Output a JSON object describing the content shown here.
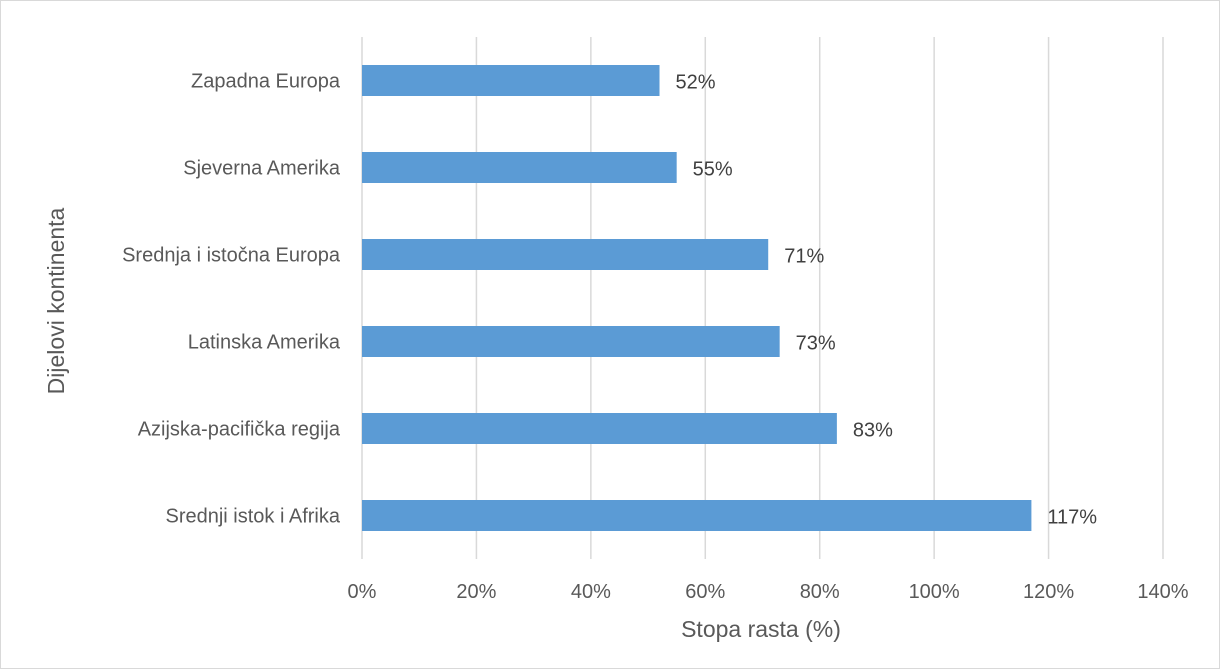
{
  "chart_data": {
    "type": "bar",
    "orientation": "horizontal",
    "title": "",
    "xlabel": "Stopa rasta  (%)",
    "ylabel": "Dijelovi kontinenta",
    "categories": [
      "Zapadna Europa",
      "Sjeverna Amerika",
      "Srednja i istočna Europa",
      "Latinska Amerika",
      "Azijska-pacifička regija",
      "Srednji istok i Afrika"
    ],
    "values": [
      52,
      55,
      71,
      73,
      83,
      117
    ],
    "data_labels": [
      "52%",
      "55%",
      "71%",
      "73%",
      "83%",
      "117%"
    ],
    "xlim": [
      0,
      140
    ],
    "x_ticks": [
      0,
      20,
      40,
      60,
      80,
      100,
      120,
      140
    ],
    "x_tick_labels": [
      "0%",
      "20%",
      "40%",
      "60%",
      "80%",
      "100%",
      "120%",
      "140%"
    ],
    "grid": "vertical",
    "legend": "none",
    "colors": {
      "bar": "#5b9bd5",
      "grid": "#d9d9d9",
      "text": "#595959",
      "border": "#d9d9d9"
    }
  }
}
